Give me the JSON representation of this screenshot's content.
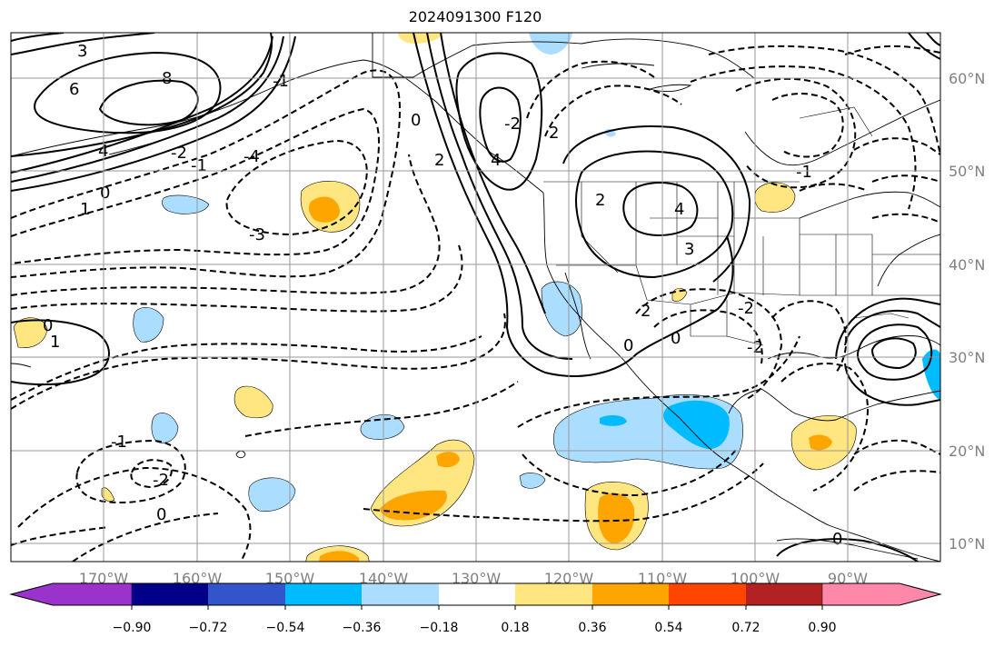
{
  "title": "2024091300 F120",
  "lat_labels": [
    "60°N",
    "50°N",
    "40°N",
    "30°N",
    "20°N",
    "10°N"
  ],
  "lon_labels": [
    "170°W",
    "160°W",
    "150°W",
    "140°W",
    "130°W",
    "120°W",
    "110°W",
    "100°W",
    "90°W"
  ],
  "colorbar": {
    "colors": [
      "#9933cc",
      "#000088",
      "#3355cc",
      "#00bbff",
      "#aaddff",
      "#ffffff",
      "#ffe680",
      "#ffa500",
      "#ff4500",
      "#b22222",
      "#ff88aa"
    ],
    "tick_labels": [
      "−0.90",
      "−0.72",
      "−0.54",
      "−0.36",
      "−0.18",
      "0.18",
      "0.36",
      "0.54",
      "0.72",
      "0.90"
    ]
  },
  "contour_labels": [
    "3",
    "6",
    "8",
    "4",
    "1",
    "0",
    "-1",
    "-2",
    "-3",
    "-4",
    "0",
    "-1",
    "1",
    "0",
    "-1",
    "-2",
    "0",
    "2",
    "4",
    "3",
    "2",
    "4",
    "2",
    "-2",
    "0",
    "-2",
    "0",
    "-1",
    "-2",
    "2",
    "0"
  ]
}
